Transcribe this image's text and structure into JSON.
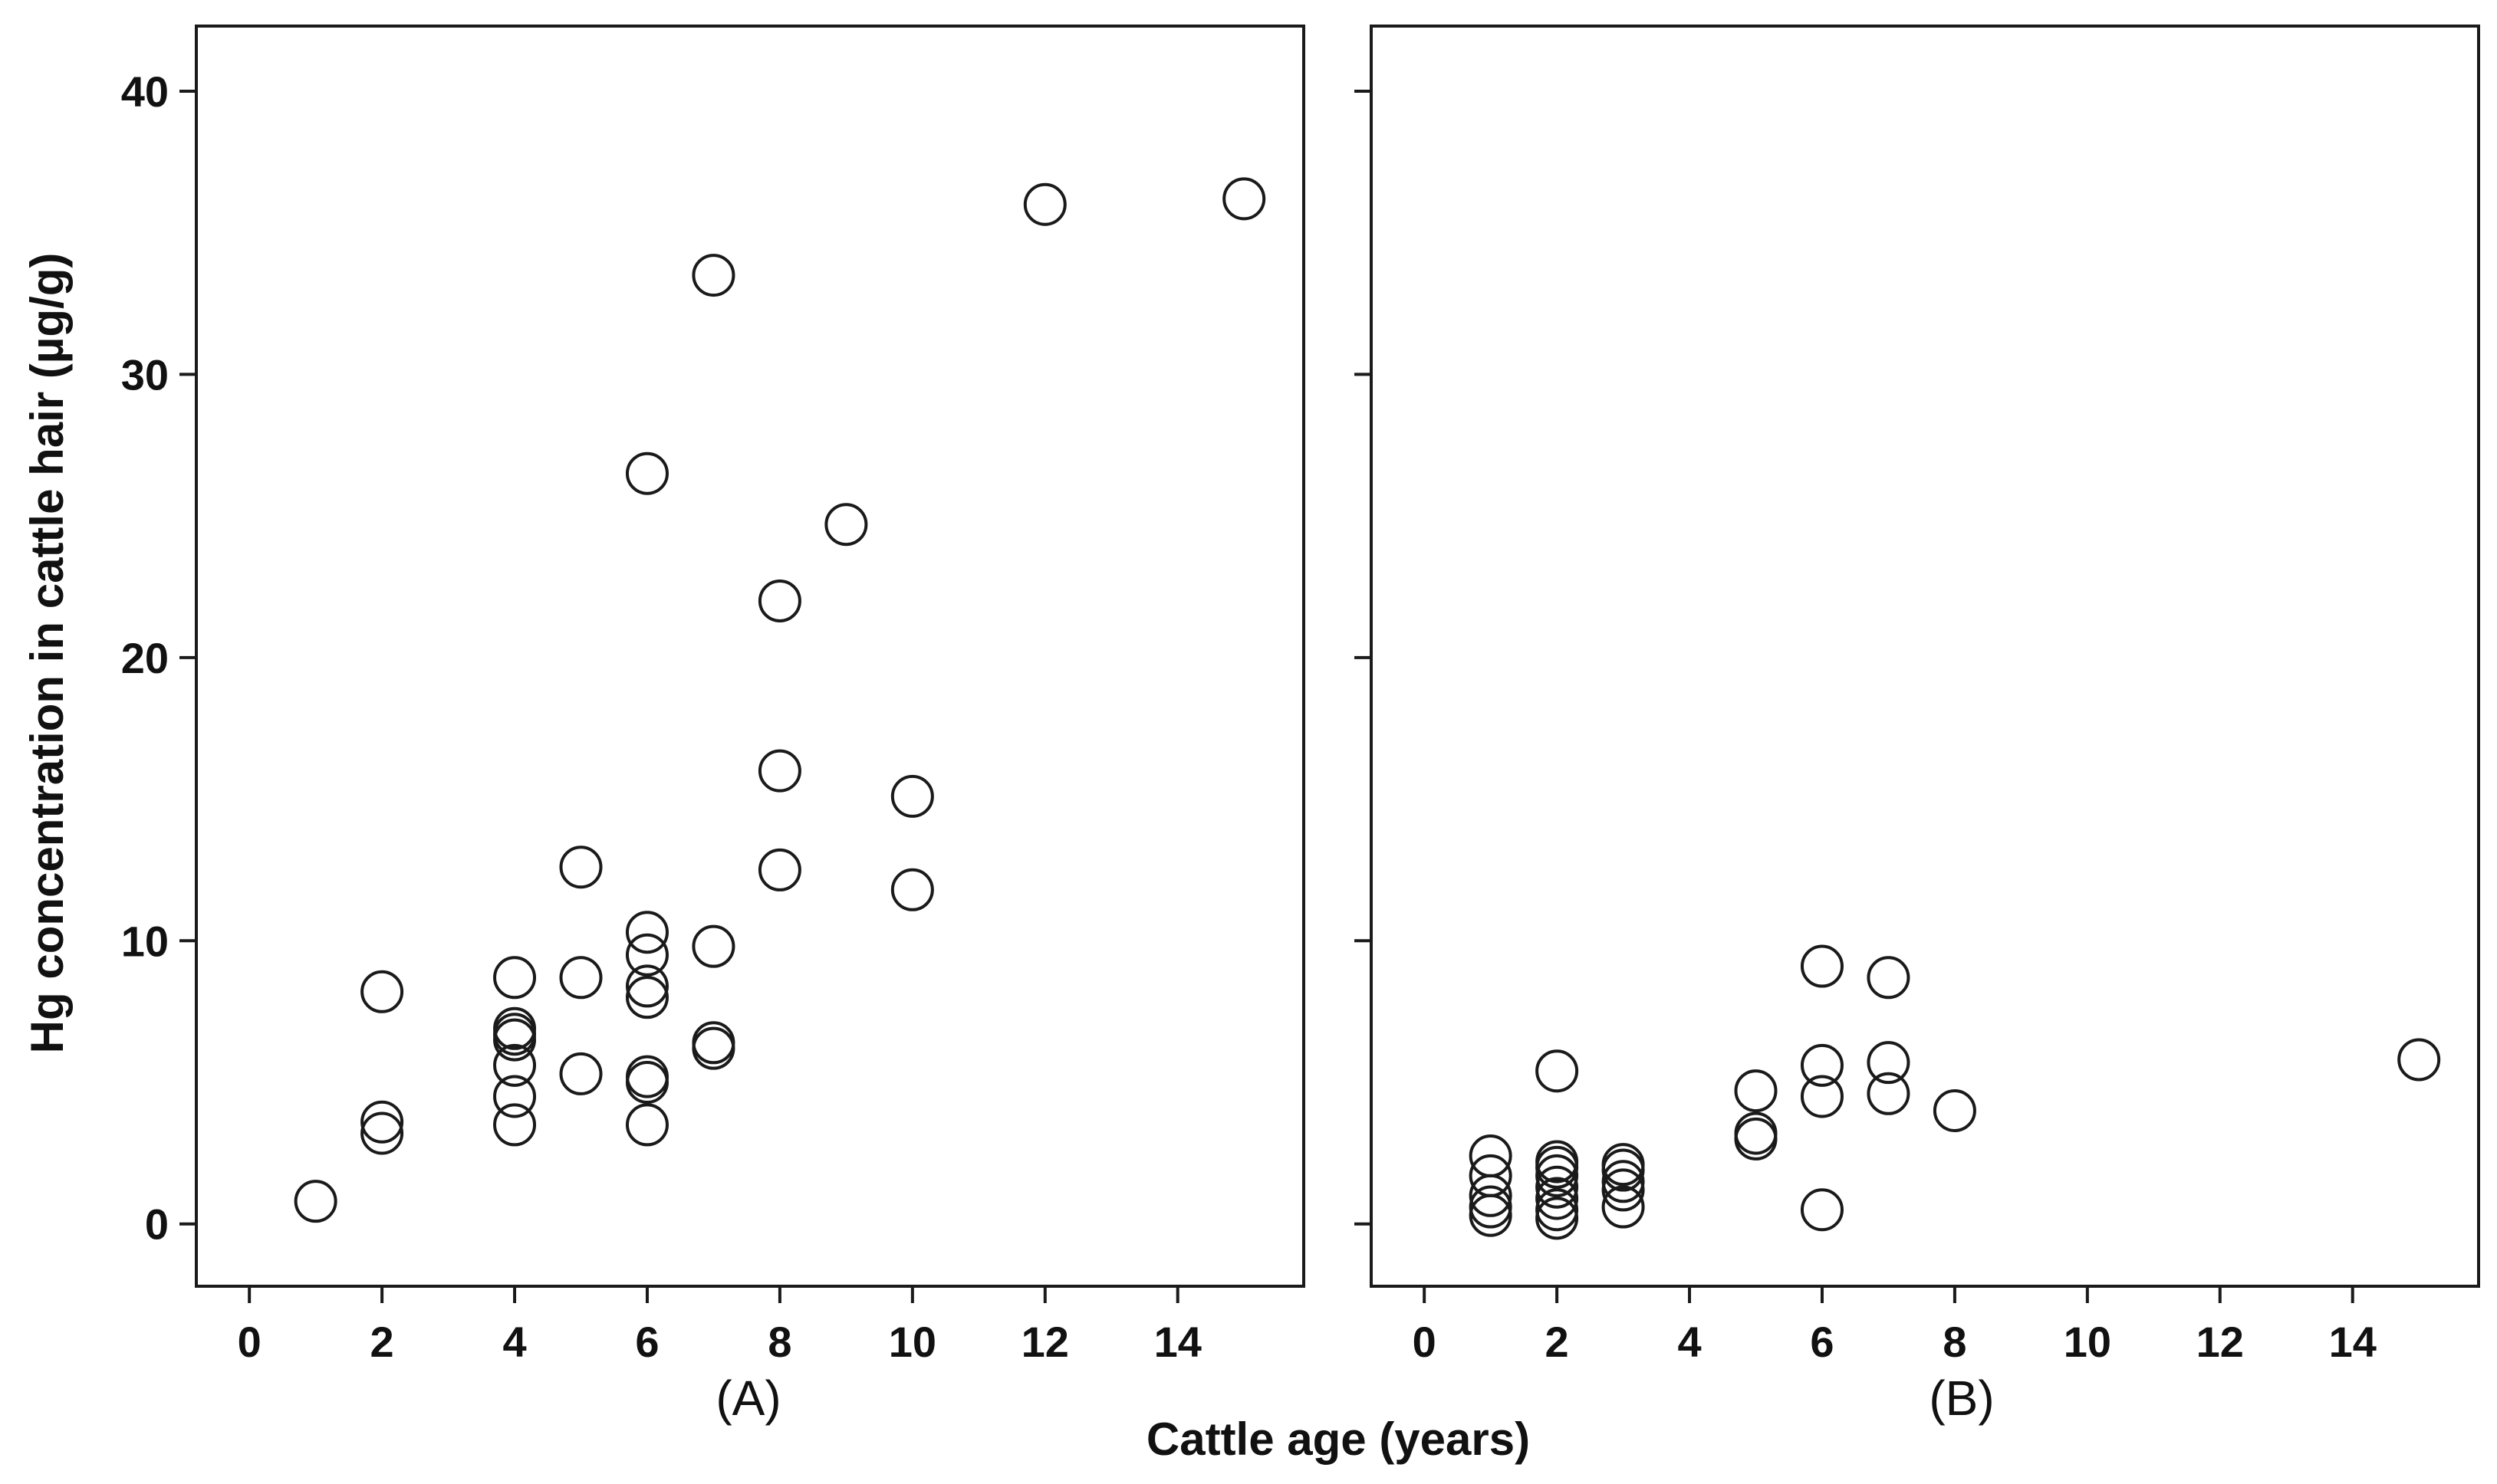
{
  "chart_data": {
    "type": "scatter",
    "xlabel": "Cattle age (years)",
    "ylabel": "Hg concentration in cattle hair (µg/g)",
    "ylim": [
      -2.2,
      42.3
    ],
    "yticks": [
      "0",
      "10",
      "20",
      "30",
      "40"
    ],
    "xticks": [
      "0",
      "2",
      "4",
      "6",
      "8",
      "10",
      "12",
      "14"
    ],
    "xlim": [
      -0.8,
      15.9
    ],
    "marker": "open-circle",
    "panels": [
      {
        "label": "(A)",
        "points": [
          [
            1,
            0.8
          ],
          [
            2,
            8.2
          ],
          [
            2,
            3.6
          ],
          [
            2,
            3.2
          ],
          [
            4,
            8.7
          ],
          [
            4,
            6.9
          ],
          [
            4,
            6.7
          ],
          [
            4,
            6.5
          ],
          [
            4,
            5.6
          ],
          [
            4,
            4.5
          ],
          [
            4,
            3.5
          ],
          [
            5,
            12.6
          ],
          [
            5,
            8.7
          ],
          [
            5,
            5.3
          ],
          [
            6,
            26.5
          ],
          [
            6,
            10.3
          ],
          [
            6,
            9.5
          ],
          [
            6,
            8.4
          ],
          [
            6,
            8.0
          ],
          [
            6,
            5.2
          ],
          [
            6,
            5.0
          ],
          [
            6,
            3.5
          ],
          [
            7,
            33.5
          ],
          [
            7,
            9.8
          ],
          [
            7,
            6.4
          ],
          [
            7,
            6.2
          ],
          [
            8,
            22.0
          ],
          [
            8,
            16.0
          ],
          [
            8,
            12.5
          ],
          [
            9,
            24.7
          ],
          [
            10,
            15.1
          ],
          [
            10,
            11.8
          ],
          [
            12,
            36.0
          ],
          [
            15,
            36.2
          ]
        ]
      },
      {
        "label": "(B)",
        "points": [
          [
            1,
            2.4
          ],
          [
            1,
            1.7
          ],
          [
            1,
            1.0
          ],
          [
            1,
            0.6
          ],
          [
            1,
            0.3
          ],
          [
            2,
            5.4
          ],
          [
            2,
            2.2
          ],
          [
            2,
            2.0
          ],
          [
            2,
            1.7
          ],
          [
            2,
            1.3
          ],
          [
            2,
            0.9
          ],
          [
            2,
            0.5
          ],
          [
            2,
            0.2
          ],
          [
            3,
            2.1
          ],
          [
            3,
            1.9
          ],
          [
            3,
            1.5
          ],
          [
            3,
            1.2
          ],
          [
            3,
            0.6
          ],
          [
            5,
            4.7
          ],
          [
            5,
            3.2
          ],
          [
            5,
            3.0
          ],
          [
            6,
            9.1
          ],
          [
            6,
            5.6
          ],
          [
            6,
            4.5
          ],
          [
            6,
            0.5
          ],
          [
            7,
            8.7
          ],
          [
            7,
            5.7
          ],
          [
            7,
            4.6
          ],
          [
            8,
            4.0
          ],
          [
            15,
            5.8
          ]
        ]
      }
    ]
  }
}
